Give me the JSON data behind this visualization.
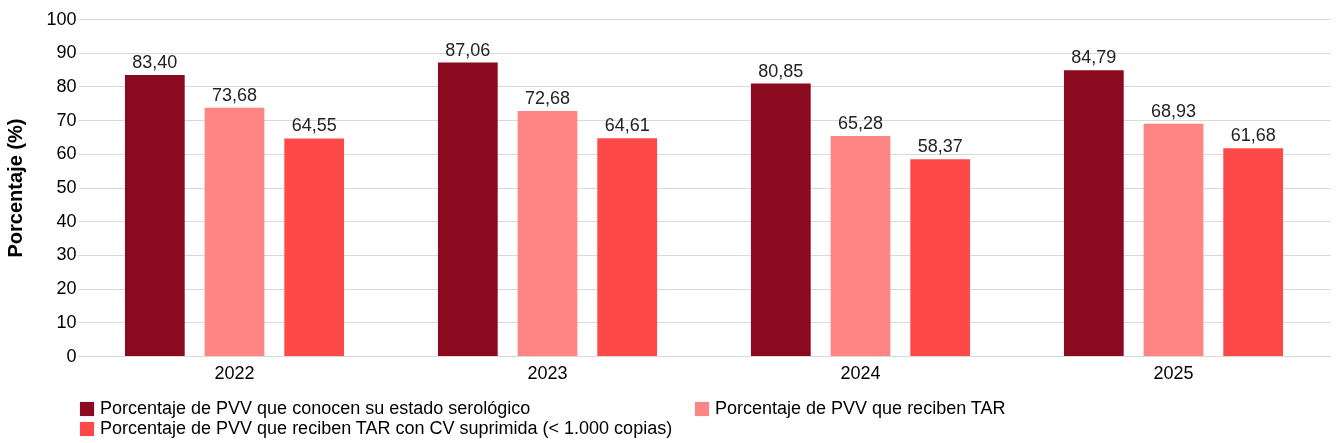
{
  "chart_data": {
    "type": "bar",
    "ylabel": "Porcentaje (%)",
    "categories": [
      "2022",
      "2023",
      "2024",
      "2025"
    ],
    "series": [
      {
        "name": "Porcentaje de PVV que conocen su estado serológico",
        "color": "#8b0a1f",
        "values": [
          83.4,
          87.06,
          80.85,
          84.79
        ],
        "value_labels": [
          "83,40",
          "87,06",
          "80,85",
          "84,79"
        ]
      },
      {
        "name": "Porcentaje de PVV que reciben TAR",
        "color": "#ff8585",
        "values": [
          73.68,
          72.68,
          65.28,
          68.93
        ],
        "value_labels": [
          "73,68",
          "72,68",
          "65,28",
          "68,93"
        ]
      },
      {
        "name": "Porcentaje de PVV que reciben TAR con CV suprimida (< 1.000 copias)",
        "color": "#ff4949",
        "values": [
          64.55,
          64.61,
          58.37,
          61.68
        ],
        "value_labels": [
          "64,55",
          "64,61",
          "58,37",
          "61,68"
        ]
      }
    ],
    "ylim": [
      0,
      100
    ],
    "yticks": [
      0,
      10,
      20,
      30,
      40,
      50,
      60,
      70,
      80,
      90,
      100
    ],
    "grid": "y",
    "legend": "bottom"
  }
}
